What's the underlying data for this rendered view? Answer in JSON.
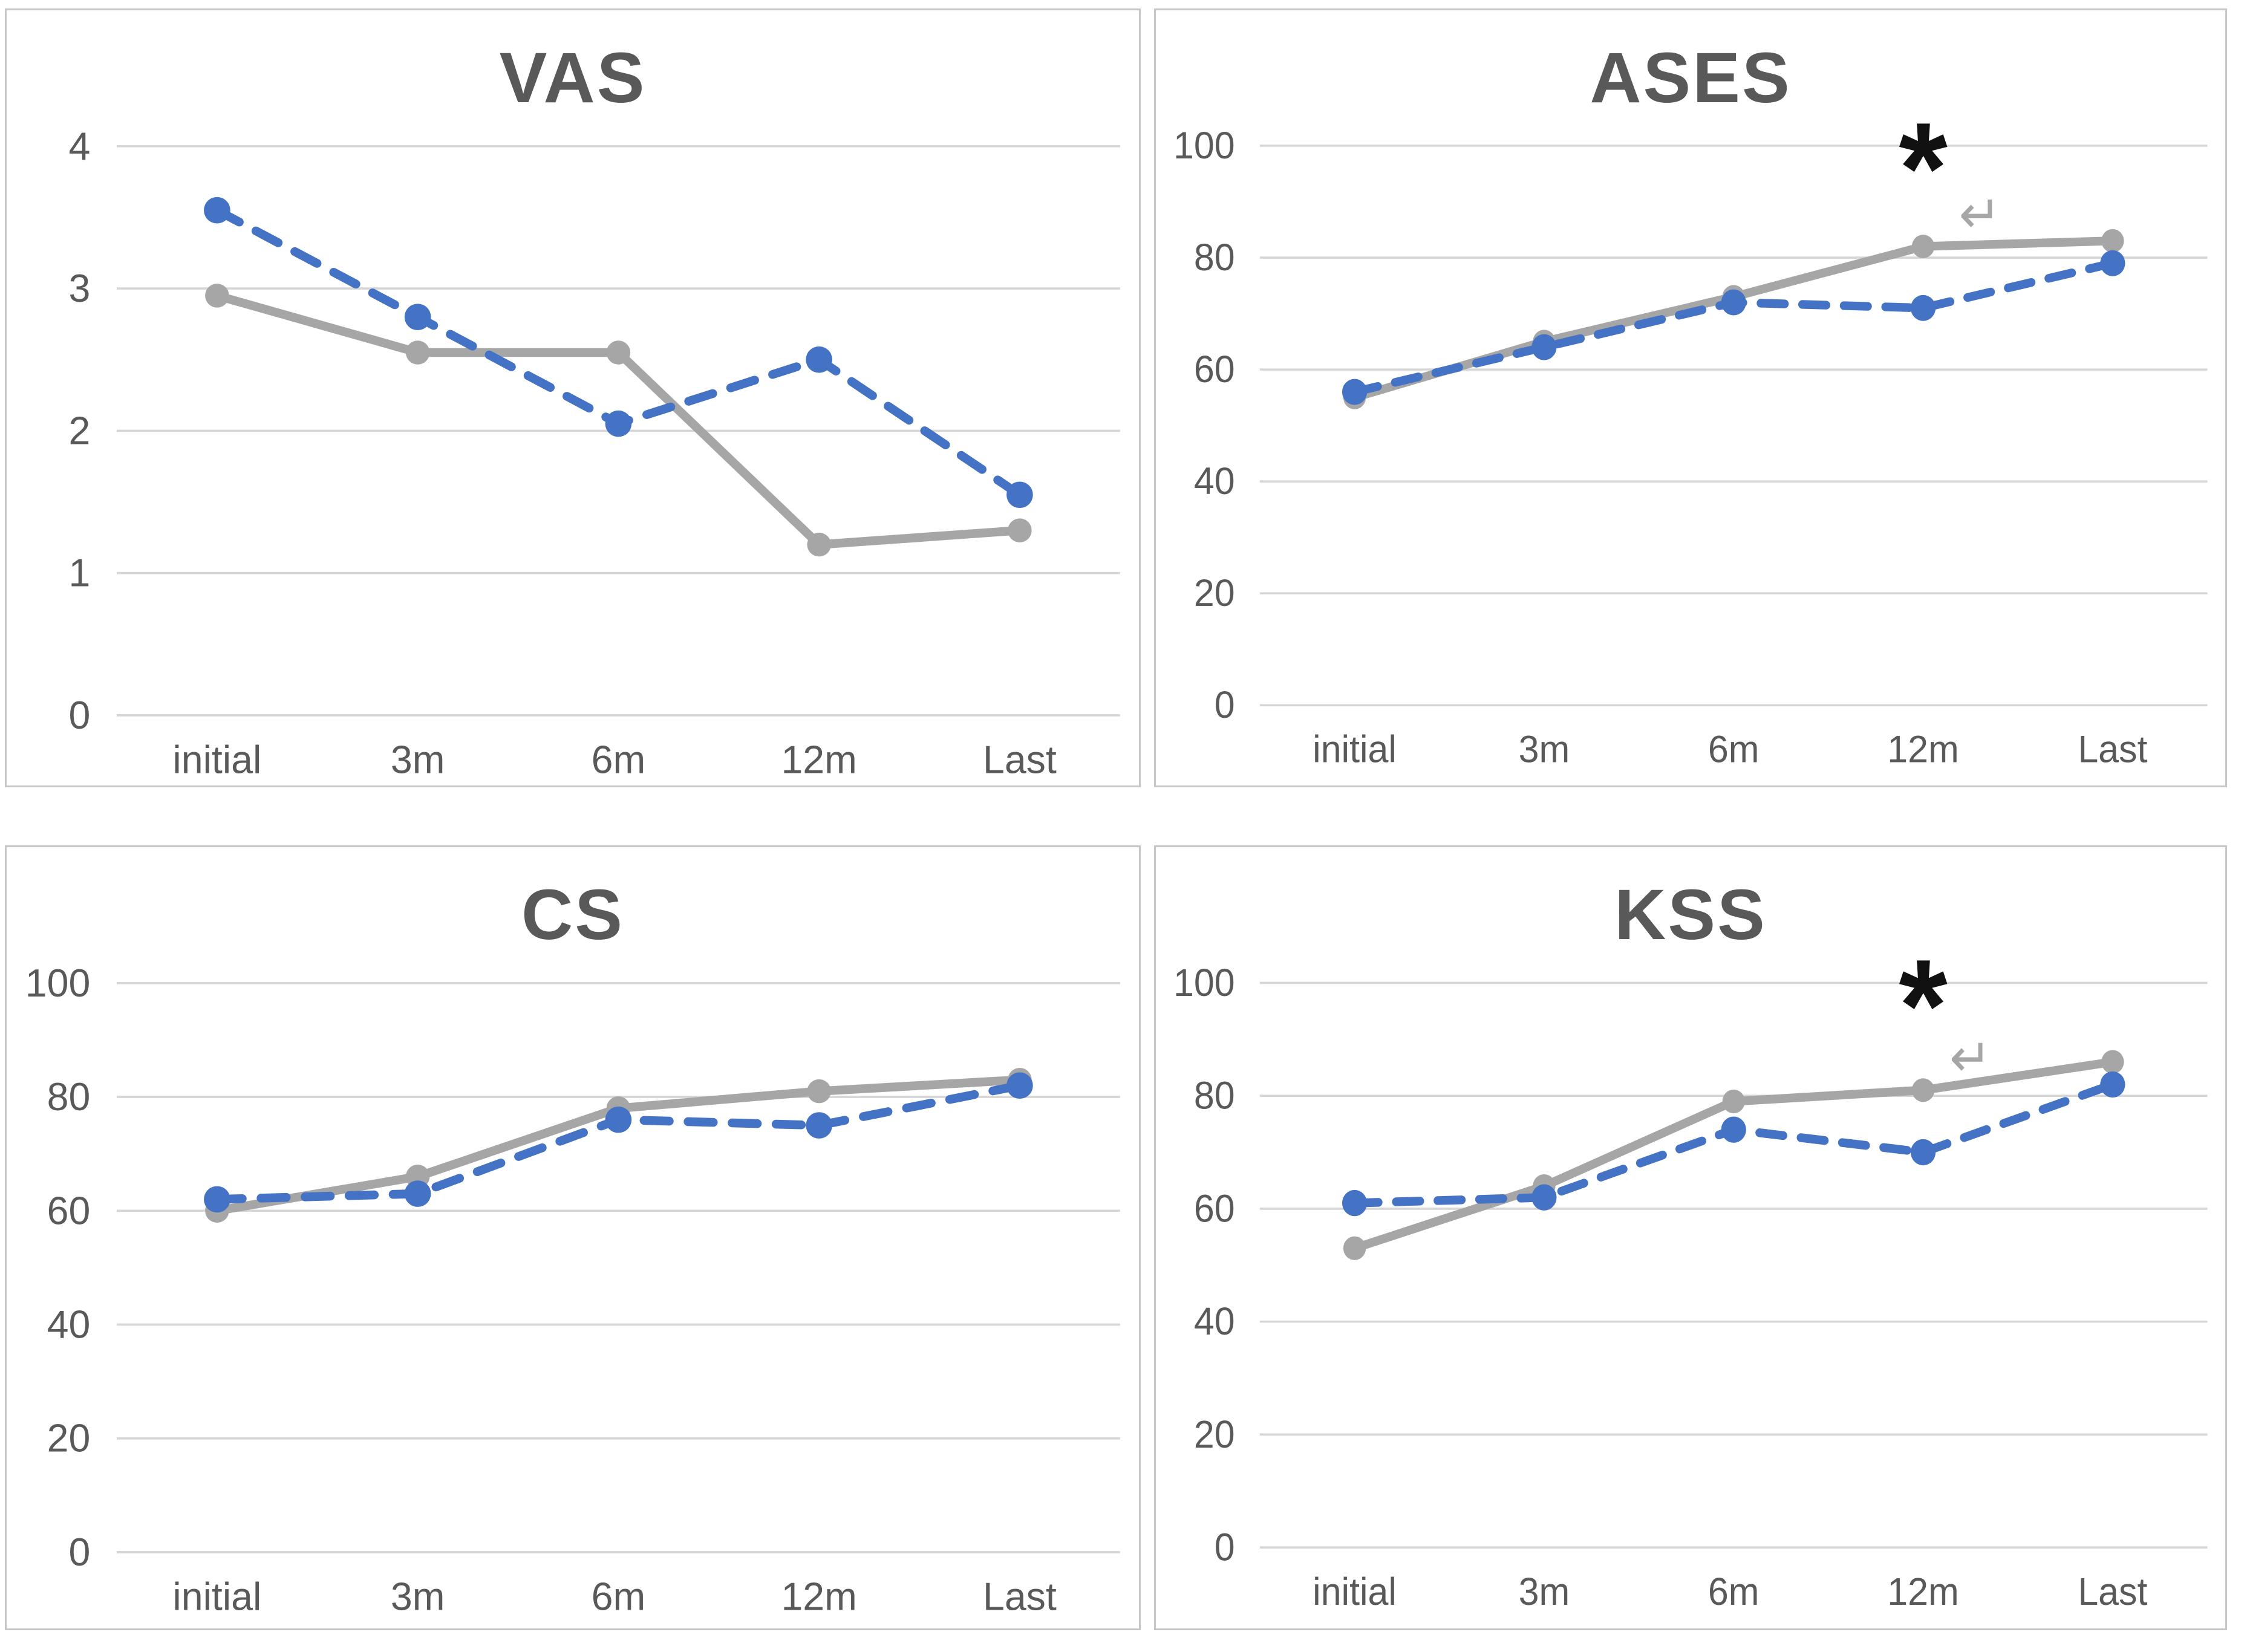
{
  "figure": {
    "description": "Four line charts comparing two groups (blue dashed vs gray solid) over follow-up time points",
    "background": "#ffffff"
  },
  "colors": {
    "series_blue": "#4472c4",
    "series_gray": "#a6a6a6",
    "gridline": "#d6d6d6",
    "axis_text": "#595959",
    "title_text": "#595959",
    "panel_border": "#c6c6c6",
    "annotation_black": "#111111",
    "annotation_gray": "#a6a6a6"
  },
  "chart_data": [
    {
      "type": "line",
      "title": "VAS",
      "categories": [
        "initial",
        "3m",
        "6m",
        "12m",
        "Last"
      ],
      "series": [
        {
          "name": "solid-gray",
          "style": "solid",
          "color_key": "series_gray",
          "values": [
            2.95,
            2.55,
            2.55,
            1.2,
            1.3
          ]
        },
        {
          "name": "dashed-blue",
          "style": "dashed",
          "color_key": "series_blue",
          "values": [
            3.55,
            2.8,
            2.05,
            2.5,
            1.55
          ]
        }
      ],
      "xlabel": "",
      "ylabel": "",
      "ylim": [
        0,
        4
      ],
      "yticks": [
        0,
        1,
        2,
        3,
        4
      ],
      "grid": true,
      "legend": "none",
      "annotations": []
    },
    {
      "type": "line",
      "title": "ASES",
      "categories": [
        "initial",
        "3m",
        "6m",
        "12m",
        "Last"
      ],
      "series": [
        {
          "name": "solid-gray",
          "style": "solid",
          "color_key": "series_gray",
          "values": [
            55,
            65,
            73,
            82,
            83
          ]
        },
        {
          "name": "dashed-blue",
          "style": "dashed",
          "color_key": "series_blue",
          "values": [
            56,
            64,
            72,
            71,
            79
          ]
        }
      ],
      "xlabel": "",
      "ylabel": "",
      "ylim": [
        0,
        100
      ],
      "yticks": [
        0,
        20,
        40,
        60,
        80,
        100
      ],
      "grid": true,
      "legend": "none",
      "annotations": [
        {
          "kind": "asterisk",
          "text": "*",
          "category": "12m",
          "value": 88,
          "dx": 0
        },
        {
          "kind": "return-arrow",
          "text": "↵",
          "category": "12m",
          "value": 84.5,
          "dx": 0.3
        }
      ]
    },
    {
      "type": "line",
      "title": "CS",
      "categories": [
        "initial",
        "3m",
        "6m",
        "12m",
        "Last"
      ],
      "series": [
        {
          "name": "solid-gray",
          "style": "solid",
          "color_key": "series_gray",
          "values": [
            60,
            66,
            78,
            81,
            83
          ]
        },
        {
          "name": "dashed-blue",
          "style": "dashed",
          "color_key": "series_blue",
          "values": [
            62,
            63,
            76,
            75,
            82
          ]
        }
      ],
      "xlabel": "",
      "ylabel": "",
      "ylim": [
        0,
        100
      ],
      "yticks": [
        0,
        20,
        40,
        60,
        80,
        100
      ],
      "grid": true,
      "legend": "none",
      "annotations": []
    },
    {
      "type": "line",
      "title": "KSS",
      "categories": [
        "initial",
        "3m",
        "6m",
        "12m",
        "Last"
      ],
      "series": [
        {
          "name": "solid-gray",
          "style": "solid",
          "color_key": "series_gray",
          "values": [
            53,
            64,
            79,
            81,
            86
          ]
        },
        {
          "name": "dashed-blue",
          "style": "dashed",
          "color_key": "series_blue",
          "values": [
            61,
            62,
            74,
            70,
            82
          ]
        }
      ],
      "xlabel": "",
      "ylabel": "",
      "ylim": [
        0,
        100
      ],
      "yticks": [
        0,
        20,
        40,
        60,
        80,
        100
      ],
      "grid": true,
      "legend": "none",
      "annotations": [
        {
          "kind": "asterisk",
          "text": "*",
          "category": "12m",
          "value": 88,
          "dx": 0
        },
        {
          "kind": "return-arrow",
          "text": "↵",
          "category": "12m",
          "value": 83.5,
          "dx": 0.25
        }
      ]
    }
  ]
}
